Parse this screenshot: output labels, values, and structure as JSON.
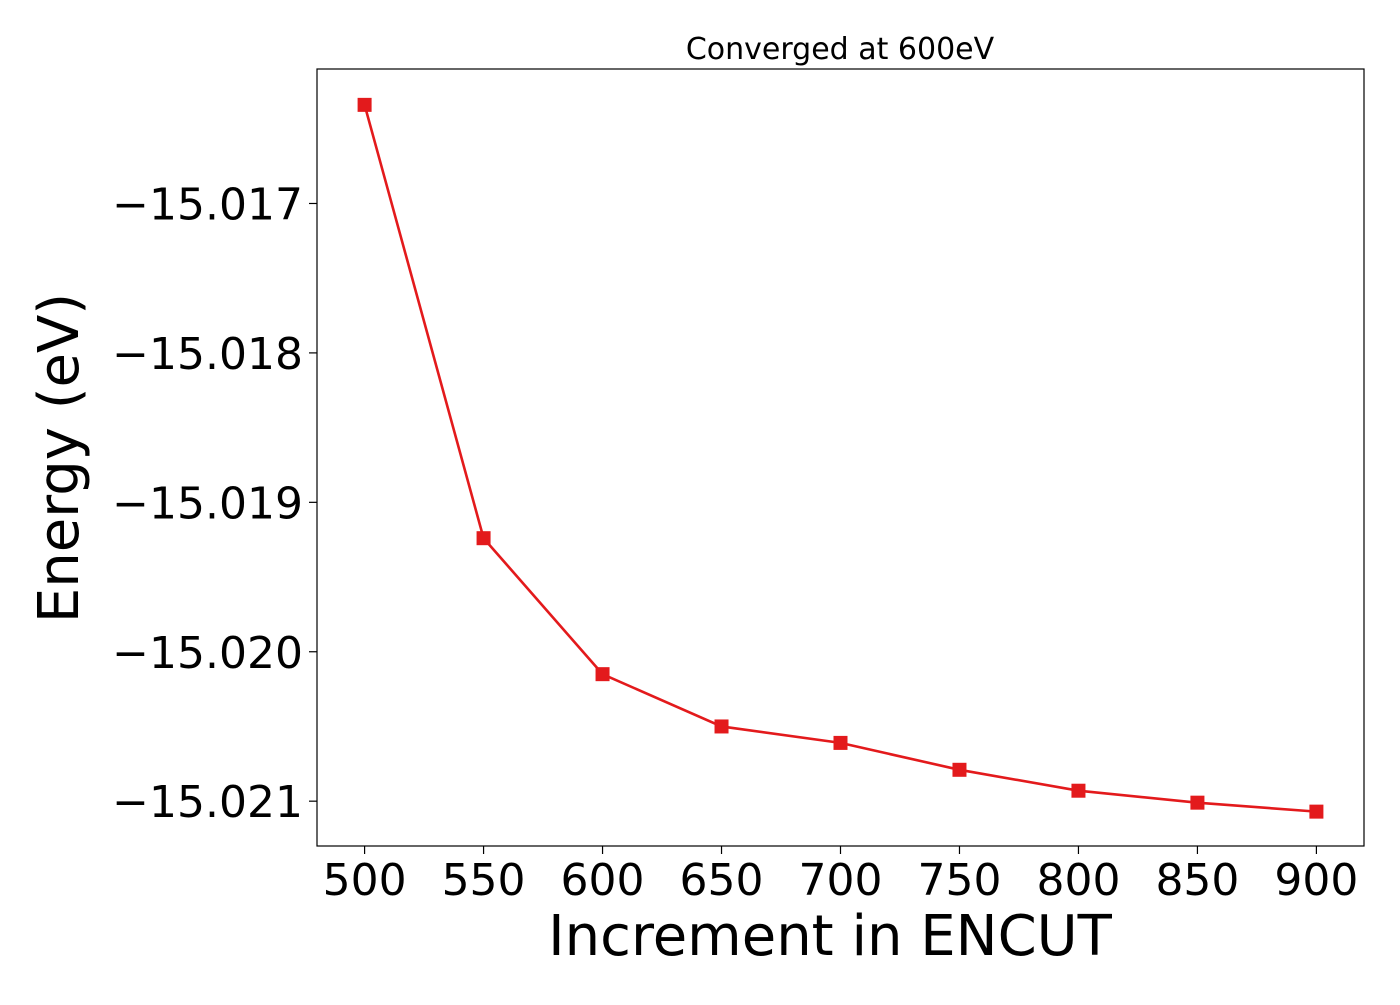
{
  "chart_data": {
    "type": "line",
    "title": "Converged at 600eV",
    "xlabel": "Increment in ENCUT",
    "ylabel": "Energy (eV)",
    "x": [
      500,
      550,
      600,
      650,
      700,
      750,
      800,
      850,
      900
    ],
    "series": [
      {
        "values": [
          -15.01634,
          -15.01924,
          -15.02015,
          -15.0205,
          -15.02061,
          -15.02079,
          -15.02093,
          -15.02101,
          -15.02107
        ],
        "color": "#e31a1c",
        "marker": "square"
      }
    ],
    "x_ticks": [
      500,
      550,
      600,
      650,
      700,
      750,
      800,
      850,
      900
    ],
    "x_tick_labels": [
      "500",
      "550",
      "600",
      "650",
      "700",
      "750",
      "800",
      "850",
      "900"
    ],
    "y_ticks": [
      -15.017,
      -15.018,
      -15.019,
      -15.02,
      -15.021
    ],
    "y_tick_labels": [
      "−15.017",
      "−15.018",
      "−15.019",
      "−15.020",
      "−15.021"
    ],
    "xlim": [
      480,
      920
    ],
    "ylim": [
      -15.0213,
      -15.0161
    ],
    "grid": false,
    "legend": "none"
  }
}
